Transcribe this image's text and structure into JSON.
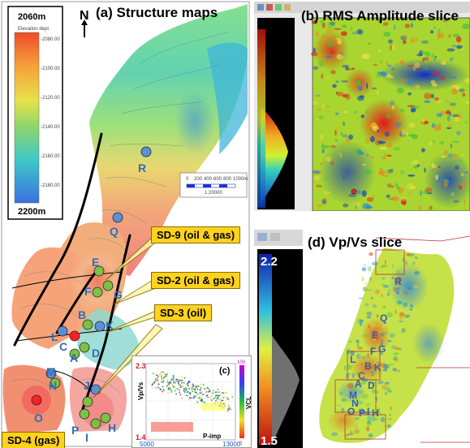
{
  "panel_a": {
    "title": "(a) Structure maps",
    "north": "N",
    "legend_top": "2060m",
    "legend_bottom": "2200m",
    "legend_title": "Elevation dept",
    "legend_ticks": [
      "-2080.00",
      "-2100.00",
      "-2120.00",
      "-2140.00",
      "-2160.00",
      "-2180.00"
    ],
    "scale_ticks": [
      "0",
      "200",
      "400",
      "600",
      "800",
      "1000m"
    ],
    "scale_ratio": "1:20000",
    "wells": [
      "R",
      "Q",
      "E",
      "F",
      "G",
      "B",
      "K",
      "L",
      "C",
      "D",
      "A",
      "M",
      "N",
      "O",
      "J",
      "P",
      "I",
      "H"
    ],
    "callouts": {
      "sd9": "SD-9 (oil & gas)",
      "sd2": "SD-2 (oil & gas)",
      "sd3": "SD-3 (oil)",
      "sd4": "SD-4 (gas)"
    }
  },
  "panel_b": {
    "title": "(b) RMS Amplitude slice"
  },
  "panel_c": {
    "label": "(c)",
    "ylabel": "Vp/Vs",
    "xlabel": "P-imp",
    "colorbar_label": "VCL",
    "y_top": "2.3",
    "y_bottom": "1.4",
    "x_left": "5000",
    "x_right": "13000",
    "cb_top": "100",
    "cb_bottom": "0"
  },
  "panel_d": {
    "title": "(d) Vp/Vs slice",
    "cb_top": "2.2",
    "cb_bottom": "1.5",
    "wells": [
      "R",
      "Q",
      "E",
      "F",
      "G",
      "L",
      "B",
      "K",
      "C",
      "A",
      "D",
      "M",
      "N",
      "O",
      "P",
      "I",
      "H"
    ]
  },
  "colors": {
    "callout_fill": "#ffd21c",
    "well_green": "#7dc043",
    "well_red": "#ff2020",
    "well_blue": "#5b8fd6",
    "fault": "#000000"
  }
}
